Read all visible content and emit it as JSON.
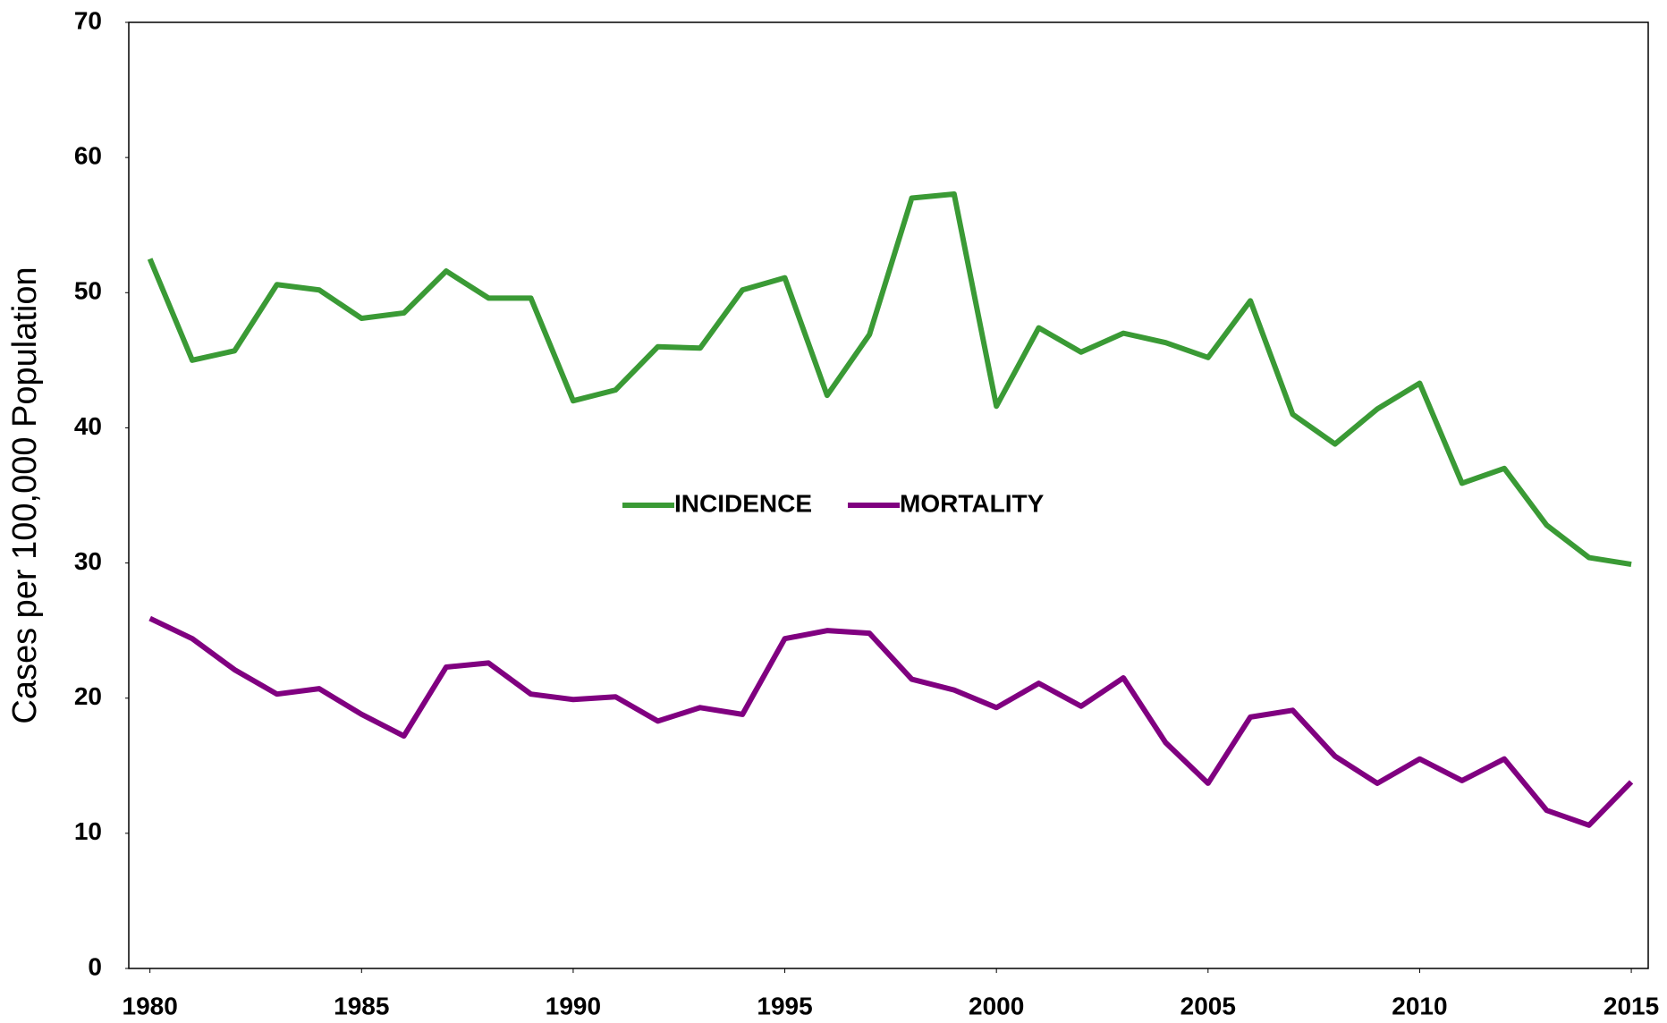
{
  "chart_data": {
    "type": "line",
    "y_label": "Cases per 100,000 Population",
    "x": [
      1980,
      1981,
      1982,
      1983,
      1984,
      1985,
      1986,
      1987,
      1988,
      1989,
      1990,
      1991,
      1992,
      1993,
      1994,
      1995,
      1996,
      1997,
      1998,
      1999,
      2000,
      2001,
      2002,
      2003,
      2004,
      2005,
      2006,
      2007,
      2008,
      2009,
      2010,
      2011,
      2012,
      2013,
      2014,
      2015
    ],
    "series": [
      {
        "name": "INCIDENCE",
        "color": "#3a9a35",
        "values": [
          52.5,
          45.0,
          45.7,
          50.6,
          50.2,
          48.1,
          48.5,
          51.6,
          49.6,
          49.6,
          42.0,
          42.8,
          46.0,
          45.9,
          50.2,
          51.1,
          42.4,
          46.9,
          57.0,
          57.3,
          41.6,
          47.4,
          45.6,
          47.0,
          46.3,
          45.2,
          49.4,
          41.0,
          38.8,
          41.4,
          43.3,
          35.9,
          37.0,
          32.8,
          30.4,
          29.9
        ]
      },
      {
        "name": "MORTALITY",
        "color": "#800080",
        "values": [
          25.9,
          24.4,
          22.1,
          20.3,
          20.7,
          18.8,
          17.2,
          22.3,
          22.6,
          20.3,
          19.9,
          20.1,
          18.3,
          19.3,
          18.8,
          24.4,
          25.0,
          24.8,
          21.4,
          20.6,
          19.3,
          21.1,
          19.4,
          21.5,
          16.7,
          13.7,
          18.6,
          19.1,
          15.7,
          13.7,
          15.5,
          13.9,
          15.5,
          11.7,
          10.6,
          13.8
        ]
      }
    ],
    "xlim": [
      1979.5,
      2015.4
    ],
    "xticks": [
      1980,
      1985,
      1990,
      1995,
      2000,
      2005,
      2010,
      2015
    ],
    "ylim": [
      0,
      70
    ],
    "yticks": [
      0,
      10,
      20,
      30,
      40,
      50,
      60,
      70
    ],
    "grid": false,
    "legend": "center"
  }
}
